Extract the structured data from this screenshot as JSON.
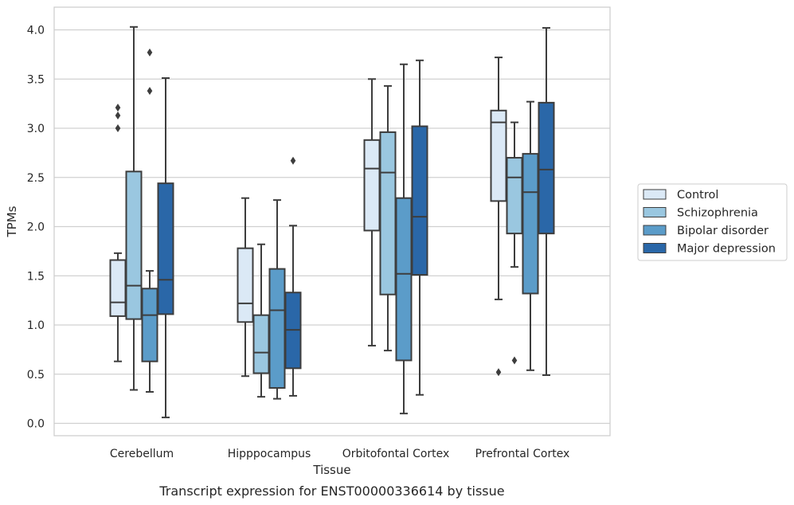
{
  "chart_data": {
    "type": "boxplot",
    "title": "",
    "caption": "Transcript expression for ENST00000336614 by tissue",
    "xlabel": "Tissue",
    "ylabel": "TPMs",
    "ylim": [
      -0.13,
      4.23
    ],
    "yticks": [
      "0.0",
      "0.5",
      "1.0",
      "1.5",
      "2.0",
      "2.5",
      "3.0",
      "3.5",
      "4.0"
    ],
    "grid": "horizontal",
    "legend_position": "right",
    "categories": [
      "Cerebellum",
      "Hipppocampus",
      "Orbitofontal Cortex",
      "Prefrontal Cortex"
    ],
    "series": [
      {
        "name": "Control",
        "color": "#dbe9f6",
        "boxes": [
          {
            "whislo": 0.63,
            "q1": 1.09,
            "med": 1.23,
            "q3": 1.66,
            "whishi": 1.73,
            "fliers": [
              3.0,
              3.13,
              3.21
            ]
          },
          {
            "whislo": 0.48,
            "q1": 1.03,
            "med": 1.22,
            "q3": 1.78,
            "whishi": 2.29,
            "fliers": []
          },
          {
            "whislo": 0.79,
            "q1": 1.96,
            "med": 2.59,
            "q3": 2.88,
            "whishi": 3.5,
            "fliers": []
          },
          {
            "whislo": 1.26,
            "q1": 2.26,
            "med": 3.06,
            "q3": 3.18,
            "whishi": 3.72,
            "fliers": [
              0.52
            ]
          }
        ]
      },
      {
        "name": "Schizophrenia",
        "color": "#9ac7e0",
        "boxes": [
          {
            "whislo": 0.34,
            "q1": 1.06,
            "med": 1.4,
            "q3": 2.56,
            "whishi": 4.03,
            "fliers": []
          },
          {
            "whislo": 0.27,
            "q1": 0.51,
            "med": 0.72,
            "q3": 1.1,
            "whishi": 1.82,
            "fliers": []
          },
          {
            "whislo": 0.74,
            "q1": 1.31,
            "med": 2.55,
            "q3": 2.96,
            "whishi": 3.43,
            "fliers": []
          },
          {
            "whislo": 1.59,
            "q1": 1.93,
            "med": 2.5,
            "q3": 2.7,
            "whishi": 3.06,
            "fliers": [
              0.64
            ]
          }
        ]
      },
      {
        "name": "Bipolar disorder",
        "color": "#5b9cc9",
        "boxes": [
          {
            "whislo": 0.32,
            "q1": 0.63,
            "med": 1.1,
            "q3": 1.37,
            "whishi": 1.55,
            "fliers": [
              3.38,
              3.77
            ]
          },
          {
            "whislo": 0.25,
            "q1": 0.36,
            "med": 1.15,
            "q3": 1.57,
            "whishi": 2.27,
            "fliers": []
          },
          {
            "whislo": 0.1,
            "q1": 0.64,
            "med": 1.52,
            "q3": 2.29,
            "whishi": 3.65,
            "fliers": []
          },
          {
            "whislo": 0.54,
            "q1": 1.32,
            "med": 2.35,
            "q3": 2.74,
            "whishi": 3.27,
            "fliers": []
          }
        ]
      },
      {
        "name": "Major depression",
        "color": "#2a67a8",
        "boxes": [
          {
            "whislo": 0.06,
            "q1": 1.11,
            "med": 1.46,
            "q3": 2.44,
            "whishi": 3.51,
            "fliers": []
          },
          {
            "whislo": 0.28,
            "q1": 0.56,
            "med": 0.95,
            "q3": 1.33,
            "whishi": 2.01,
            "fliers": [
              2.67
            ]
          },
          {
            "whislo": 0.29,
            "q1": 1.51,
            "med": 2.1,
            "q3": 3.02,
            "whishi": 3.69,
            "fliers": []
          },
          {
            "whislo": 0.49,
            "q1": 1.93,
            "med": 2.58,
            "q3": 3.26,
            "whishi": 4.02,
            "fliers": []
          }
        ]
      }
    ]
  }
}
